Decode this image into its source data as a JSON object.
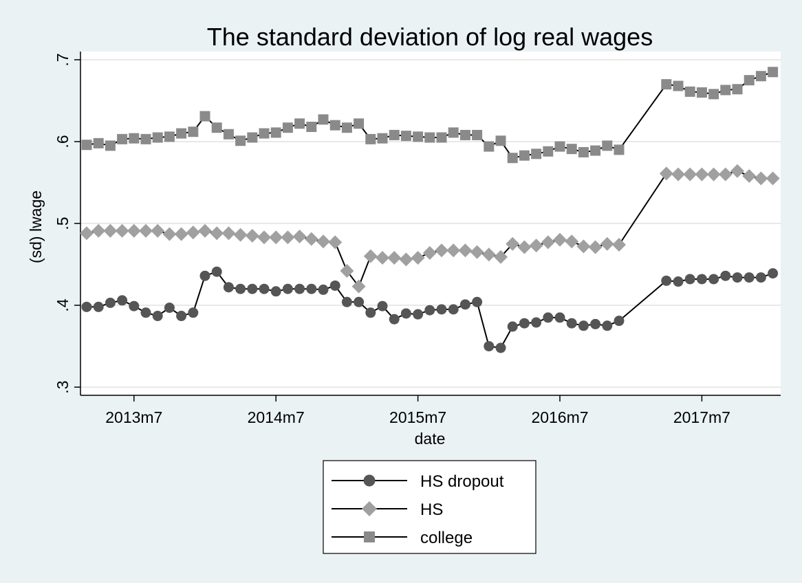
{
  "chart_data": {
    "type": "line",
    "title": "The standard deviation of log real wages",
    "xlabel": "date",
    "ylabel": "(sd) lwage",
    "x_start": "2013m3",
    "x_end": "2017m12",
    "x_step": "monthly",
    "xlim": [
      "2013m3",
      "2017m12"
    ],
    "ylim": [
      0.29,
      0.71
    ],
    "x_ticks": [
      "2013m7",
      "2014m7",
      "2015m7",
      "2016m7",
      "2017m7"
    ],
    "y_ticks": [
      ".3",
      ".4",
      ".5",
      ".6",
      ".7"
    ],
    "y_tick_values": [
      0.3,
      0.4,
      0.5,
      0.6,
      0.7
    ],
    "grid": true,
    "legend_position": "bottom-center",
    "series": [
      {
        "name": "HS dropout",
        "marker": "circle",
        "color": "#555555",
        "values": [
          0.398,
          0.398,
          0.403,
          0.406,
          0.399,
          0.391,
          0.387,
          0.397,
          0.387,
          0.391,
          0.436,
          0.441,
          0.422,
          0.42,
          0.42,
          0.42,
          0.417,
          0.42,
          0.42,
          0.42,
          0.419,
          0.424,
          0.404,
          0.404,
          0.391,
          0.399,
          0.383,
          0.39,
          0.389,
          0.394,
          0.395,
          0.395,
          0.401,
          0.404,
          0.35,
          0.348,
          0.374,
          0.378,
          0.379,
          0.385,
          0.385,
          0.378,
          0.375,
          0.377,
          0.375,
          0.381,
          null,
          null,
          null,
          0.43,
          0.429,
          0.432,
          0.432,
          0.432,
          0.436,
          0.434,
          0.434,
          0.434,
          0.439
        ]
      },
      {
        "name": "HS",
        "marker": "diamond",
        "color": "#a0a0a0",
        "values": [
          0.488,
          0.491,
          0.491,
          0.491,
          0.491,
          0.491,
          0.491,
          0.487,
          0.487,
          0.489,
          0.491,
          0.488,
          0.488,
          0.486,
          0.485,
          0.483,
          0.483,
          0.483,
          0.484,
          0.481,
          0.478,
          0.477,
          0.442,
          0.423,
          0.46,
          0.458,
          0.458,
          0.456,
          0.458,
          0.464,
          0.467,
          0.467,
          0.467,
          0.465,
          0.462,
          0.459,
          0.475,
          0.471,
          0.473,
          0.477,
          0.48,
          0.478,
          0.472,
          0.471,
          0.475,
          0.474,
          null,
          null,
          null,
          0.561,
          0.56,
          0.56,
          0.56,
          0.56,
          0.56,
          0.564,
          0.558,
          0.555,
          0.555
        ]
      },
      {
        "name": "college",
        "marker": "square",
        "color": "#8a8a8a",
        "values": [
          0.596,
          0.598,
          0.595,
          0.603,
          0.604,
          0.603,
          0.605,
          0.606,
          0.61,
          0.612,
          0.631,
          0.617,
          0.609,
          0.601,
          0.605,
          0.61,
          0.611,
          0.617,
          0.622,
          0.618,
          0.627,
          0.62,
          0.617,
          0.622,
          0.603,
          0.604,
          0.608,
          0.607,
          0.606,
          0.605,
          0.605,
          0.611,
          0.608,
          0.608,
          0.594,
          0.601,
          0.58,
          0.583,
          0.585,
          0.588,
          0.594,
          0.591,
          0.587,
          0.589,
          0.595,
          0.59,
          null,
          null,
          null,
          0.67,
          0.668,
          0.661,
          0.66,
          0.658,
          0.663,
          0.664,
          0.675,
          0.68,
          0.685
        ]
      }
    ]
  }
}
